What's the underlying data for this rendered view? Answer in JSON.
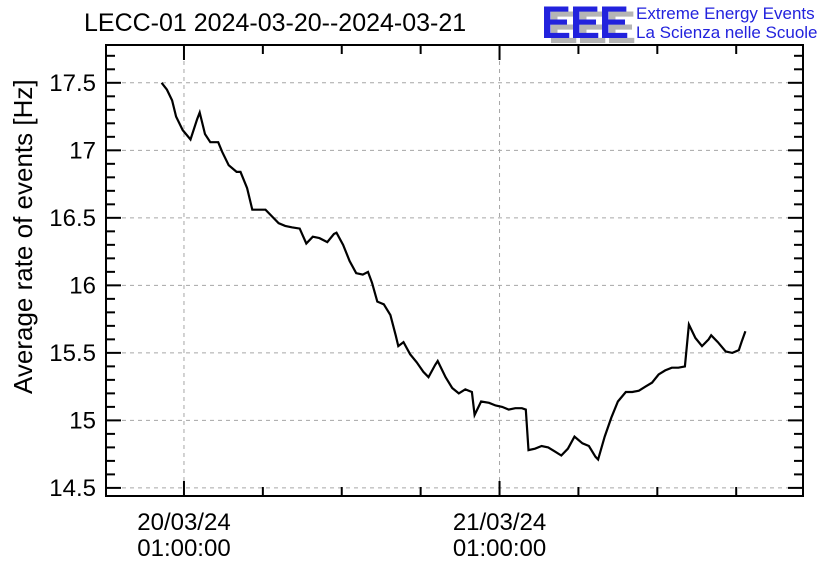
{
  "logo": {
    "acronym": "EEE",
    "line1": "Extreme Energy Events",
    "line2": "La Scienza nelle Scuole",
    "blue": "#2222dd",
    "shadow": "#b5b5b5"
  },
  "chart_data": {
    "type": "line",
    "title": "LECC-01 2024-03-20--2024-03-21",
    "xlabel": "",
    "ylabel": "Average rate of events [Hz]",
    "colors": {
      "line": "#000000",
      "grid": "#a6a6a6",
      "frame": "#000000",
      "text": "#000000"
    },
    "x_axis": {
      "unit": "hours since 20/03/24 01:00:00",
      "range_hours": [
        -5.93,
        47.08
      ],
      "major_ticks": [
        {
          "hours": 0,
          "label_lines": [
            "20/03/24",
            "01:00:00"
          ]
        },
        {
          "hours": 24,
          "label_lines": [
            "21/03/24",
            "01:00:00"
          ]
        }
      ],
      "minor_tick_step_hours": 6,
      "grid": "dashed"
    },
    "y_axis": {
      "range": [
        14.44,
        17.78
      ],
      "major_tick_start": 14.5,
      "major_tick_step": 0.5,
      "major_tick_labels": [
        "14.5",
        "15",
        "15.5",
        "16",
        "16.5",
        "17",
        "17.5"
      ],
      "minor_tick_step": 0.1,
      "grid": "dashed"
    },
    "series": [
      {
        "name": "average-rate-of-events",
        "color": "#000000",
        "points_hours_hz": [
          [
            -1.7,
            17.5
          ],
          [
            -1.3,
            17.45
          ],
          [
            -0.9,
            17.37
          ],
          [
            -0.6,
            17.25
          ],
          [
            -0.1,
            17.15
          ],
          [
            0.5,
            17.08
          ],
          [
            1.0,
            17.23
          ],
          [
            1.2,
            17.28
          ],
          [
            1.6,
            17.12
          ],
          [
            2.0,
            17.06
          ],
          [
            2.6,
            17.06
          ],
          [
            2.9,
            16.99
          ],
          [
            3.4,
            16.89
          ],
          [
            4.0,
            16.84
          ],
          [
            4.3,
            16.84
          ],
          [
            4.8,
            16.72
          ],
          [
            5.2,
            16.56
          ],
          [
            5.7,
            16.56
          ],
          [
            6.2,
            16.56
          ],
          [
            6.7,
            16.51
          ],
          [
            7.2,
            16.46
          ],
          [
            7.7,
            16.44
          ],
          [
            8.2,
            16.43
          ],
          [
            8.8,
            16.42
          ],
          [
            9.3,
            16.31
          ],
          [
            9.8,
            16.36
          ],
          [
            10.3,
            16.35
          ],
          [
            10.9,
            16.32
          ],
          [
            11.4,
            16.38
          ],
          [
            11.6,
            16.39
          ],
          [
            12.1,
            16.3
          ],
          [
            12.6,
            16.18
          ],
          [
            13.1,
            16.09
          ],
          [
            13.6,
            16.08
          ],
          [
            14.0,
            16.1
          ],
          [
            14.3,
            16.02
          ],
          [
            14.7,
            15.88
          ],
          [
            15.2,
            15.86
          ],
          [
            15.7,
            15.78
          ],
          [
            16.1,
            15.63
          ],
          [
            16.3,
            15.55
          ],
          [
            16.7,
            15.58
          ],
          [
            17.2,
            15.49
          ],
          [
            17.7,
            15.43
          ],
          [
            18.2,
            15.36
          ],
          [
            18.6,
            15.32
          ],
          [
            19.1,
            15.41
          ],
          [
            19.3,
            15.44
          ],
          [
            19.9,
            15.32
          ],
          [
            20.4,
            15.24
          ],
          [
            20.9,
            15.2
          ],
          [
            21.4,
            15.23
          ],
          [
            21.9,
            15.21
          ],
          [
            22.1,
            15.04
          ],
          [
            22.6,
            15.14
          ],
          [
            23.2,
            15.13
          ],
          [
            23.7,
            15.11
          ],
          [
            24.2,
            15.1
          ],
          [
            24.7,
            15.08
          ],
          [
            25.2,
            15.09
          ],
          [
            25.7,
            15.09
          ],
          [
            26.0,
            15.08
          ],
          [
            26.2,
            14.78
          ],
          [
            26.7,
            14.79
          ],
          [
            27.2,
            14.81
          ],
          [
            27.7,
            14.8
          ],
          [
            28.2,
            14.77
          ],
          [
            28.7,
            14.74
          ],
          [
            29.2,
            14.79
          ],
          [
            29.7,
            14.88
          ],
          [
            30.3,
            14.83
          ],
          [
            30.8,
            14.81
          ],
          [
            31.3,
            14.73
          ],
          [
            31.5,
            14.71
          ],
          [
            32.0,
            14.88
          ],
          [
            32.5,
            15.02
          ],
          [
            33.0,
            15.14
          ],
          [
            33.6,
            15.21
          ],
          [
            34.1,
            15.21
          ],
          [
            34.6,
            15.22
          ],
          [
            35.1,
            15.25
          ],
          [
            35.6,
            15.28
          ],
          [
            36.1,
            15.34
          ],
          [
            36.6,
            15.37
          ],
          [
            37.1,
            15.39
          ],
          [
            37.6,
            15.39
          ],
          [
            38.1,
            15.4
          ],
          [
            38.4,
            15.71
          ],
          [
            38.9,
            15.61
          ],
          [
            39.4,
            15.55
          ],
          [
            39.9,
            15.6
          ],
          [
            40.1,
            15.63
          ],
          [
            40.6,
            15.58
          ],
          [
            41.2,
            15.51
          ],
          [
            41.7,
            15.5
          ],
          [
            42.2,
            15.52
          ],
          [
            42.4,
            15.58
          ],
          [
            42.7,
            15.66
          ]
        ]
      }
    ]
  }
}
